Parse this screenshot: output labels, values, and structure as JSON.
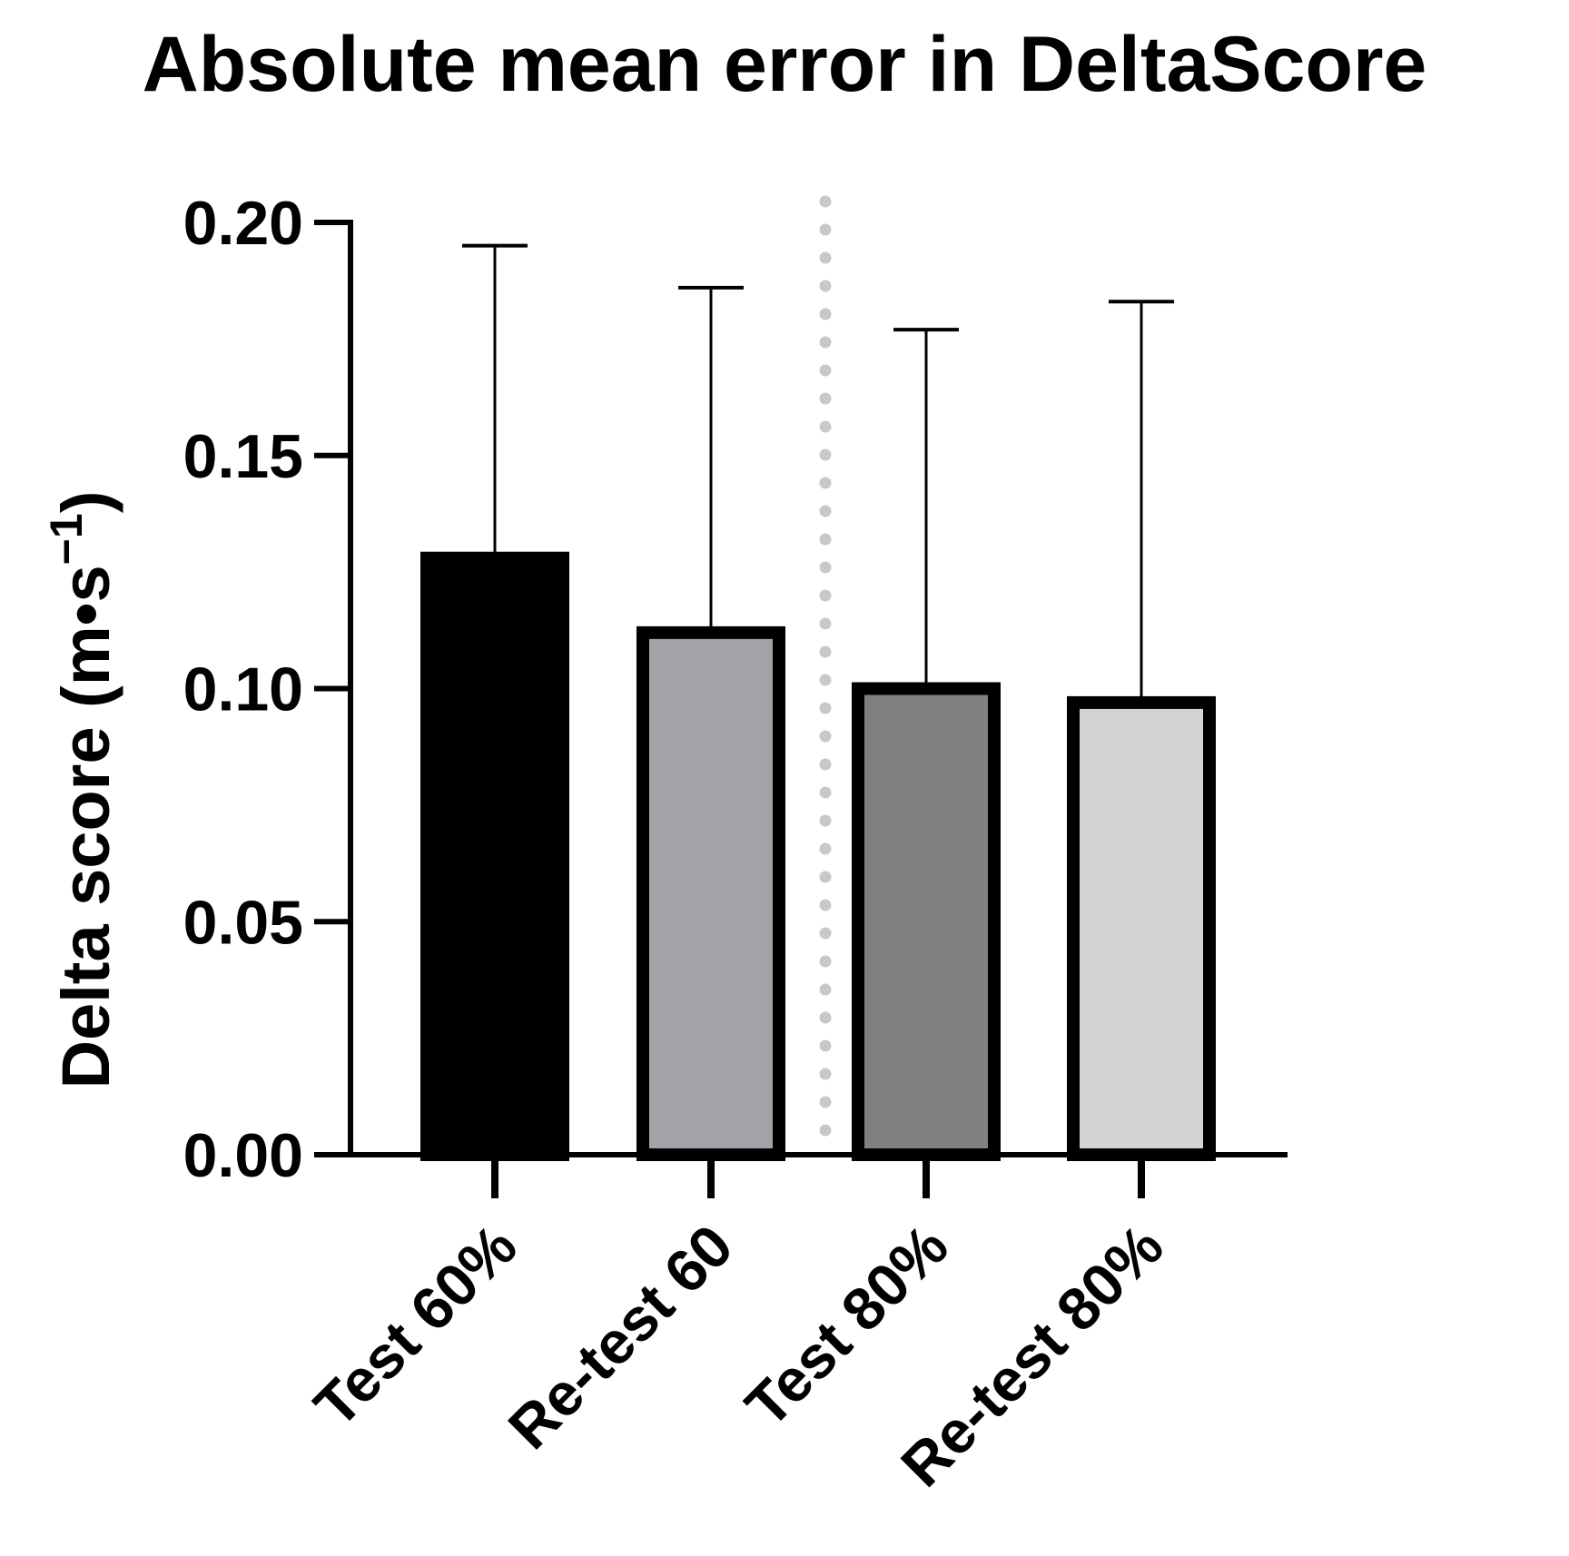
{
  "chart_data": {
    "type": "bar",
    "title": "Absolute mean error in DeltaScore",
    "ylabel": "Delta score (m•s",
    "ylabel_sup": "−1",
    "ylabel_close": ")",
    "xlabel": "",
    "ylim": [
      0,
      0.2
    ],
    "yticks": [
      0.0,
      0.05,
      0.1,
      0.15,
      0.2
    ],
    "ytick_labels": [
      "0.00",
      "0.05",
      "0.10",
      "0.15",
      "0.20"
    ],
    "categories": [
      "Test 60%",
      "Re-test 60",
      "Test 80%",
      "Re-test 80%"
    ],
    "values": [
      0.128,
      0.112,
      0.1,
      0.097
    ],
    "error_upper": [
      0.195,
      0.186,
      0.177,
      0.183
    ],
    "fill_colors": [
      "#000000",
      "#a2a2a7",
      "#808080",
      "#d3d3d3"
    ],
    "edge_color": "#000000",
    "separator": {
      "style": "dotted",
      "color": "#c8c8c8",
      "between": [
        "Re-test 60",
        "Test 80%"
      ]
    },
    "grid": false,
    "legend": "none"
  }
}
